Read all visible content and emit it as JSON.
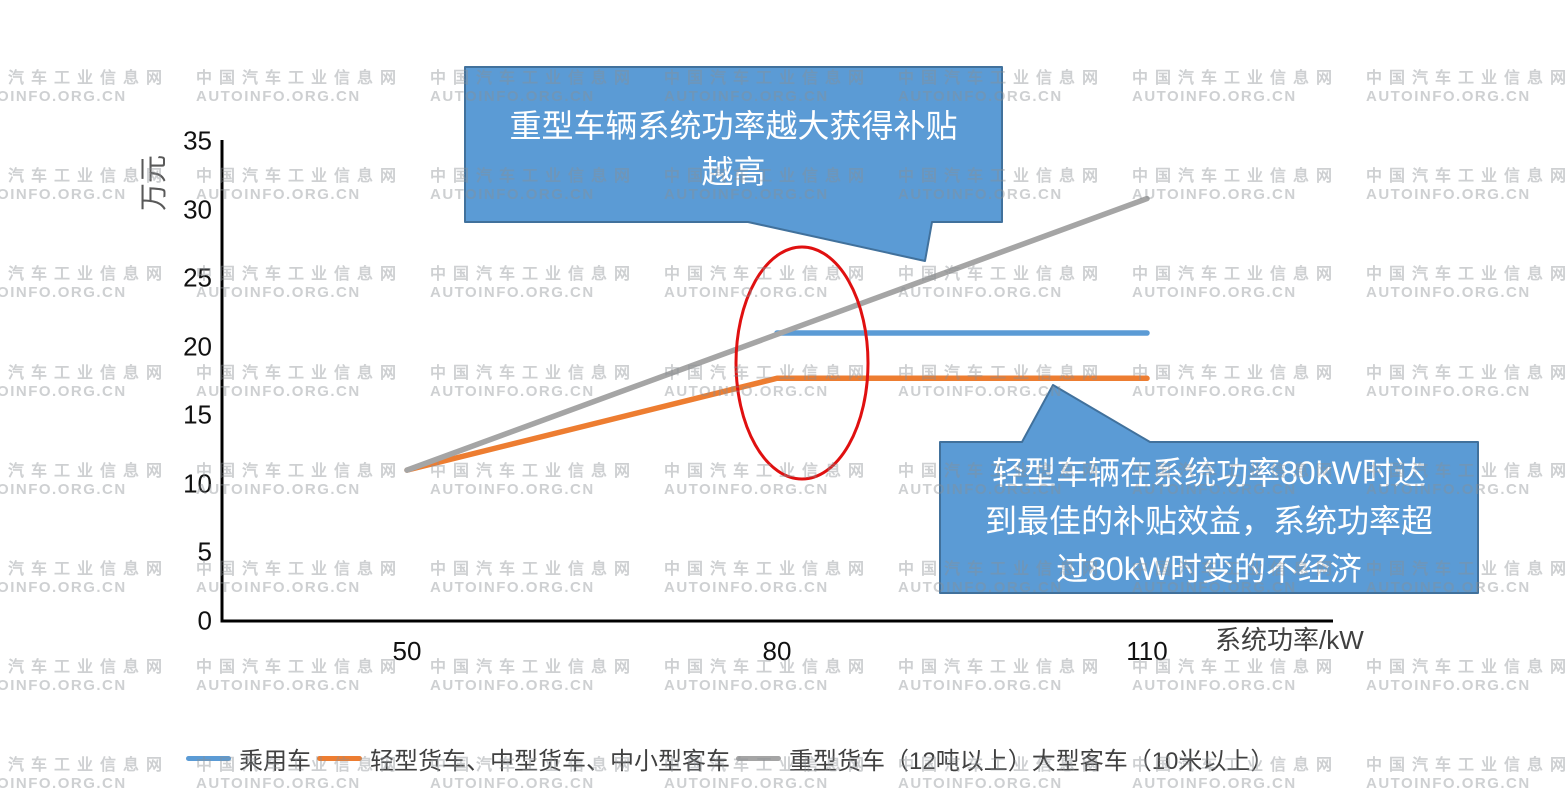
{
  "watermark": {
    "line1": "中国汽车工业信息网",
    "line2": "AUTOINFO.ORG.CN"
  },
  "chart_data": {
    "type": "line",
    "title": "",
    "xlabel": "系统功率/kW",
    "ylabel": "万元",
    "xticks": [
      "50",
      "80",
      "110"
    ],
    "yticks": [
      "0",
      "5",
      "10",
      "15",
      "20",
      "25",
      "30",
      "35"
    ],
    "xlim": [
      35,
      125
    ],
    "ylim": [
      0,
      35
    ],
    "grid": false,
    "legend_position": "bottom",
    "series": [
      {
        "name": "乘用车",
        "color": "#5B9BD5",
        "points": [
          [
            80,
            21
          ],
          [
            110,
            21
          ]
        ]
      },
      {
        "name": "轻型货车、中型货车、中小型客车",
        "color": "#ED7D31",
        "points": [
          [
            50,
            11
          ],
          [
            80,
            17.7
          ],
          [
            110,
            17.7
          ]
        ]
      },
      {
        "name": "重型货车（12吨以上）大型客车（10米以上）",
        "color": "#A5A5A5",
        "points": [
          [
            50,
            11
          ],
          [
            110,
            30.8
          ]
        ]
      }
    ],
    "annotations": {
      "callout_fill": "#5B9BD5",
      "callout_border": "#41719C",
      "ellipse_color": "#E01010",
      "callouts": [
        {
          "lines": [
            "重型车辆系统功率越大获得补贴",
            "越高"
          ]
        },
        {
          "lines": [
            "轻型车辆在系统功率80kW时达",
            "到最佳的补贴效益，系统功率超",
            "过80kW时变的不经济"
          ]
        }
      ]
    }
  }
}
